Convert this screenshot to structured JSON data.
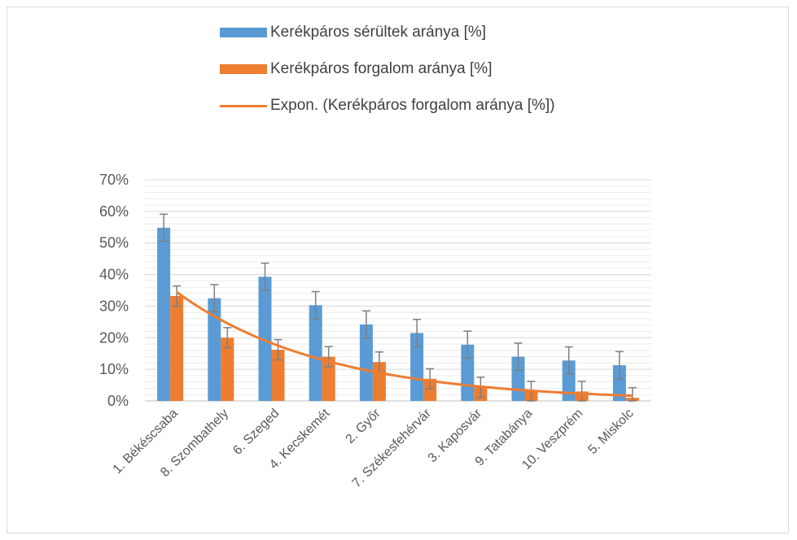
{
  "colors": {
    "series1": "#5b9bd5",
    "series2": "#ed7d31",
    "trend": "#ed7d31",
    "errorbar": "#7f7f7f",
    "grid": "#d9d9d9"
  },
  "legend": {
    "items": [
      {
        "label": "Kerékpáros sérültek aránya [%]",
        "kind": "bar",
        "color": "#5b9bd5"
      },
      {
        "label": "Kerékpáros forgalom aránya [%]",
        "kind": "bar",
        "color": "#ed7d31"
      },
      {
        "label": "Expon. (Kerékpáros forgalom aránya [%])",
        "kind": "line",
        "color": "#ed7d31"
      }
    ]
  },
  "chart_data": {
    "type": "bar",
    "categories": [
      "1. Békéscsaba",
      "8. Szombathely",
      "6. Szeged",
      "4. Kecskemét",
      "2. Győr",
      "7. Székesfehérvár",
      "3. Kaposvár",
      "9. Tatabánya",
      "10. Veszprém",
      "5. Miskolc"
    ],
    "series": [
      {
        "name": "Kerékpáros sérültek aránya [%]",
        "values": [
          54.8,
          32.5,
          39.3,
          30.3,
          24.2,
          21.5,
          17.8,
          14,
          12.8,
          11.3
        ],
        "error": [
          4.3,
          4.3,
          4.3,
          4.3,
          4.3,
          4.3,
          4.3,
          4.3,
          4.3,
          4.3
        ]
      },
      {
        "name": "Kerékpáros forgalom aránya [%]",
        "values": [
          33.2,
          20,
          16.2,
          14,
          12.3,
          7,
          4.3,
          3,
          3,
          1
        ],
        "error": [
          3.2,
          3.2,
          3.2,
          3.2,
          3.2,
          3.2,
          3.2,
          3.2,
          3.2,
          3.2
        ]
      }
    ],
    "trendline": {
      "name": "Expon. (Kerékpáros forgalom aránya [%])",
      "type": "exponential",
      "a": 48.3,
      "b": -0.338
    },
    "yticks": [
      "0%",
      "10%",
      "20%",
      "30%",
      "40%",
      "50%",
      "60%",
      "70%"
    ],
    "ylim": [
      0,
      70
    ],
    "minor_grid_step": 2,
    "grid": true,
    "legend_position": "top"
  }
}
